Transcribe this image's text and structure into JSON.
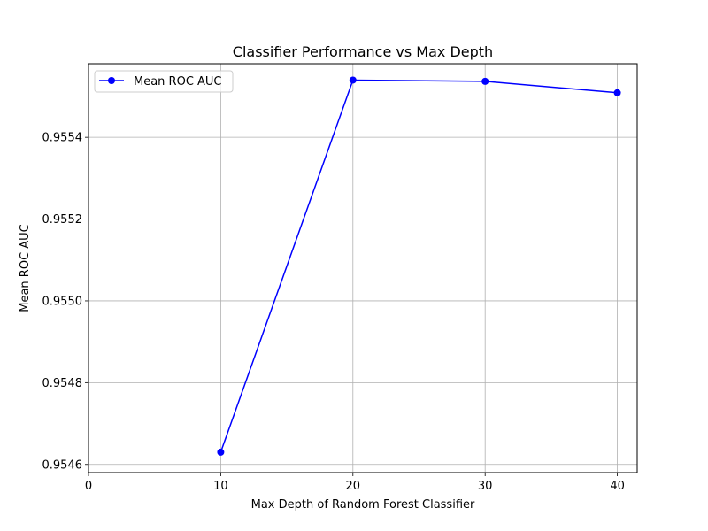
{
  "chart_data": {
    "type": "line",
    "title": "Classifier Performance vs Max Depth",
    "xlabel": "Max Depth of Random Forest Classifier",
    "ylabel": "Mean ROC AUC",
    "xlim": [
      0,
      41.5
    ],
    "ylim": [
      0.95458,
      0.95558
    ],
    "xticks": [
      0,
      10,
      20,
      30,
      40
    ],
    "xtick_labels": [
      "0",
      "10",
      "20",
      "30",
      "40"
    ],
    "yticks": [
      0.9546,
      0.9548,
      0.955,
      0.9552,
      0.9554
    ],
    "ytick_labels": [
      "0.9546",
      "0.9548",
      "0.9550",
      "0.9552",
      "0.9554"
    ],
    "grid": true,
    "legend_position": "upper-left",
    "series": [
      {
        "name": "Mean ROC AUC",
        "color": "#0000ff",
        "marker": "circle",
        "x": [
          10,
          20,
          30,
          40
        ],
        "y": [
          0.95463,
          0.95554,
          0.955537,
          0.955509
        ]
      }
    ]
  }
}
